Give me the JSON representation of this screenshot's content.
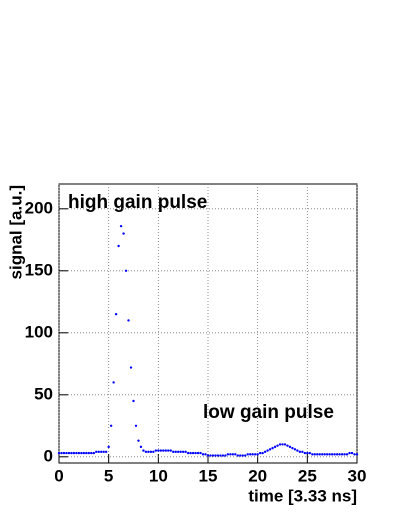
{
  "chart_data": {
    "type": "scatter",
    "xlabel": "time [3.33 ns]",
    "ylabel": "signal [a.u.]",
    "annotations": [
      "high gain pulse",
      "low gain pulse"
    ],
    "xlim": [
      0,
      30
    ],
    "ylim": [
      -5,
      220
    ],
    "xticks": [
      0,
      5,
      10,
      15,
      20,
      25,
      30
    ],
    "yticks": [
      0,
      50,
      100,
      150,
      200
    ],
    "grid": true,
    "series": [
      {
        "color": "#0000ff",
        "x": [
          0,
          0.25,
          0.5,
          0.75,
          1,
          1.25,
          1.5,
          1.75,
          2,
          2.25,
          2.5,
          2.75,
          3,
          3.25,
          3.5,
          3.75,
          4,
          4.25,
          4.5,
          4.75,
          5,
          5.25,
          5.5,
          5.75,
          6,
          6.25,
          6.5,
          6.75,
          7,
          7.25,
          7.5,
          7.75,
          8,
          8.25,
          8.5,
          8.75,
          9,
          9.25,
          9.5,
          9.75,
          10,
          10.25,
          10.5,
          10.75,
          11,
          11.25,
          11.5,
          11.75,
          12,
          12.25,
          12.5,
          12.75,
          13,
          13.25,
          13.5,
          13.75,
          14,
          14.25,
          14.5,
          14.75,
          15,
          15.25,
          15.5,
          15.75,
          16,
          16.25,
          16.5,
          16.75,
          17,
          17.25,
          17.5,
          17.75,
          18,
          18.25,
          18.5,
          18.75,
          19,
          19.25,
          19.5,
          19.75,
          20,
          20.25,
          20.5,
          20.75,
          21,
          21.25,
          21.5,
          21.75,
          22,
          22.25,
          22.5,
          22.75,
          23,
          23.25,
          23.5,
          23.75,
          24,
          24.25,
          24.5,
          24.75,
          25,
          25.25,
          25.5,
          25.75,
          26,
          26.25,
          26.5,
          26.75,
          27,
          27.25,
          27.5,
          27.75,
          28,
          28.25,
          28.5,
          28.75,
          29,
          29.25,
          29.5,
          29.75,
          30
        ],
        "values": [
          3,
          3,
          3,
          3,
          3,
          3,
          3,
          3,
          3,
          3,
          3,
          3,
          3,
          3,
          3,
          4,
          4,
          4,
          4,
          4,
          8,
          25,
          60,
          115,
          170,
          186,
          180,
          150,
          110,
          72,
          45,
          25,
          13,
          8,
          5,
          4,
          4,
          4,
          4,
          5,
          5,
          5,
          5,
          5,
          5,
          5,
          4,
          4,
          4,
          4,
          4,
          4,
          3,
          3,
          3,
          3,
          3,
          3,
          2,
          2,
          1,
          1,
          1,
          1,
          1,
          1,
          1,
          1,
          2,
          2,
          2,
          2,
          1,
          1,
          1,
          1,
          2,
          2,
          2,
          2,
          2,
          3,
          3,
          4,
          5,
          6,
          7,
          8,
          9,
          10,
          10,
          10,
          9,
          8,
          7,
          6,
          5,
          4,
          4,
          3,
          3,
          3,
          2,
          2,
          2,
          2,
          2,
          2,
          2,
          2,
          2,
          2,
          2,
          2,
          2,
          2,
          2,
          3,
          3,
          2,
          2
        ]
      }
    ]
  }
}
